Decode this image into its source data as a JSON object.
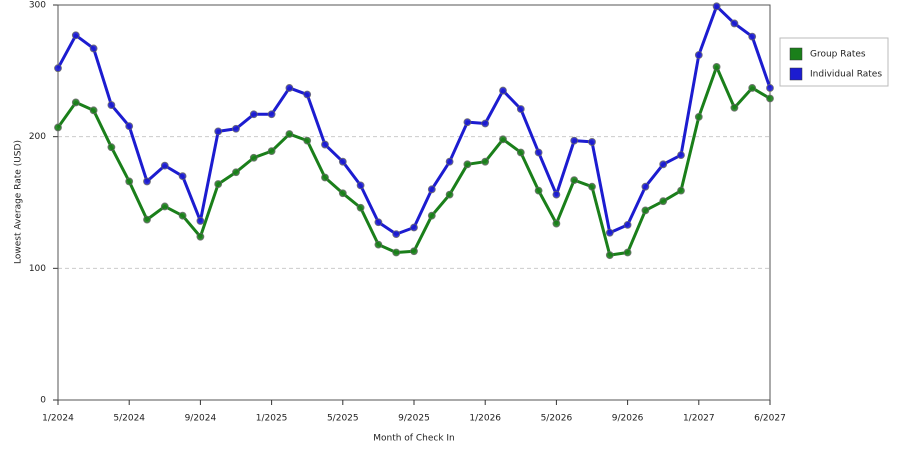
{
  "chart_data": {
    "type": "line",
    "x_label": "Month of Check In",
    "y_label": "Lowest Average Rate (USD)",
    "categories": [
      "1/2024",
      null,
      null,
      null,
      "5/2024",
      null,
      null,
      null,
      "9/2024",
      null,
      null,
      null,
      "1/2025",
      null,
      null,
      null,
      "5/2025",
      null,
      null,
      null,
      "9/2025",
      null,
      null,
      null,
      "1/2026",
      null,
      null,
      null,
      "5/2026",
      null,
      null,
      null,
      "9/2026",
      null,
      null,
      null,
      "1/2027",
      null,
      null,
      null,
      "6/2027"
    ],
    "series": [
      {
        "name": "Group Rates",
        "color": "#1a7f1a",
        "values": [
          207,
          226,
          220,
          192,
          166,
          137,
          147,
          140,
          124,
          164,
          173,
          184,
          189,
          202,
          197,
          169,
          157,
          146,
          118,
          112,
          113,
          140,
          156,
          179,
          181,
          198,
          188,
          159,
          134,
          167,
          162,
          110,
          112,
          144,
          151,
          159,
          215,
          253,
          222,
          237,
          229
        ]
      },
      {
        "name": "Individual Rates",
        "color": "#1c1cd0",
        "values": [
          252,
          277,
          267,
          224,
          208,
          166,
          178,
          170,
          136,
          204,
          206,
          217,
          217,
          237,
          232,
          194,
          181,
          163,
          135,
          126,
          131,
          160,
          181,
          211,
          210,
          235,
          221,
          188,
          156,
          197,
          196,
          127,
          133,
          162,
          179,
          186,
          262,
          299,
          286,
          276,
          237
        ]
      }
    ],
    "ylim": [
      0,
      300
    ],
    "yticks": [
      0,
      100,
      200,
      300
    ],
    "grid": true,
    "legend": "right"
  }
}
